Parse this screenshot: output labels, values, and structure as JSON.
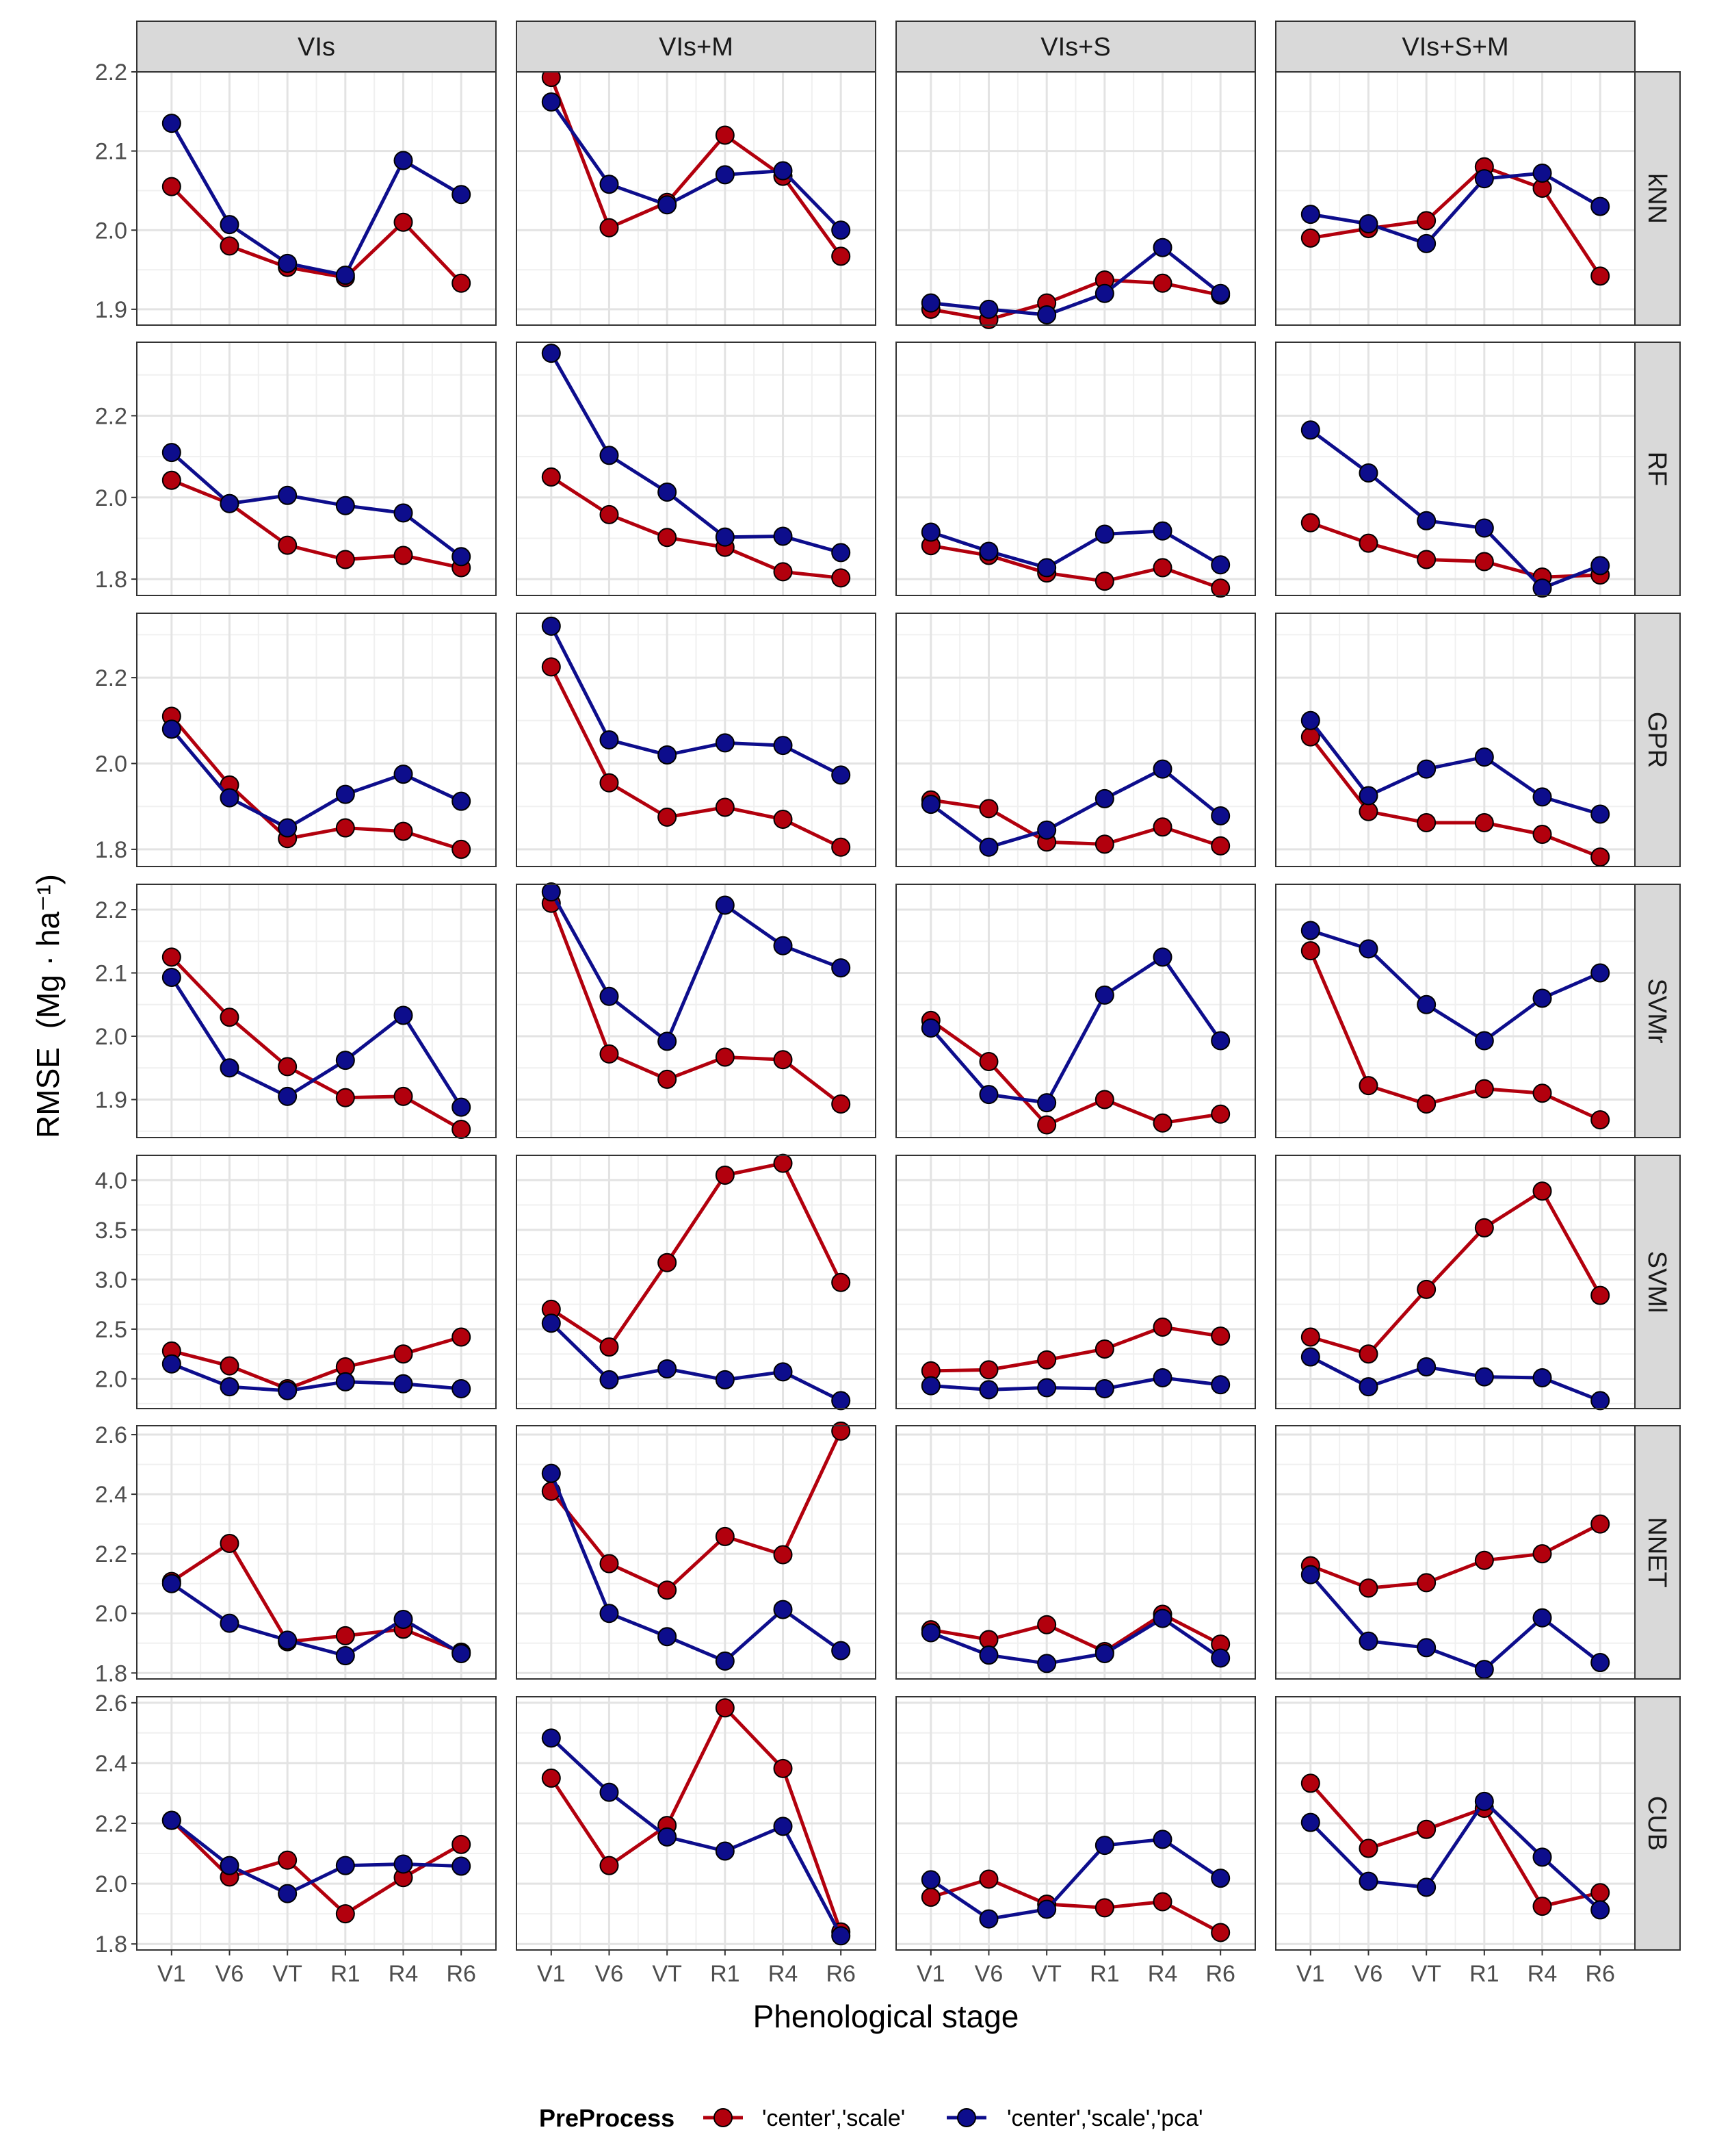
{
  "chart_data": {
    "type": "line",
    "xlabel": "Phenological stage",
    "ylabel": "RMSE",
    "ylabel_unit": "Mg · ha⁻¹",
    "x": [
      "V1",
      "V6",
      "VT",
      "R1",
      "R4",
      "R6"
    ],
    "col_facets": [
      "VIs",
      "VIs+M",
      "VIs+S",
      "VIs+S+M"
    ],
    "row_facets": [
      "kNN",
      "RF",
      "GPR",
      "SVMr",
      "SVMl",
      "NNET",
      "CUB"
    ],
    "scale_y": "free_y per row",
    "legend": {
      "title": "PreProcess",
      "position": "bottom",
      "entries": [
        {
          "name": "'center','scale'",
          "color": "#b2000d"
        },
        {
          "name": "'center','scale','pca'",
          "color": "#0d0d8c"
        }
      ]
    },
    "rows": [
      {
        "name": "kNN",
        "ylim": [
          1.88,
          2.2
        ],
        "ticks": [
          1.9,
          2.0,
          2.1,
          2.2
        ],
        "tick_labels": [
          "1.9",
          "2.0",
          "2.1",
          "2.2"
        ],
        "panels": [
          {
            "cs": [
              2.055,
              1.98,
              1.953,
              1.94,
              2.01,
              1.933
            ],
            "pca": [
              2.135,
              2.007,
              1.958,
              1.943,
              2.088,
              2.045
            ]
          },
          {
            "cs": [
              2.193,
              2.003,
              2.035,
              2.12,
              2.068,
              1.967
            ],
            "pca": [
              2.162,
              2.058,
              2.032,
              2.07,
              2.075,
              2.0
            ]
          },
          {
            "cs": [
              1.9,
              1.887,
              1.908,
              1.937,
              1.933,
              1.918
            ],
            "pca": [
              1.908,
              1.9,
              1.893,
              1.92,
              1.978,
              1.92
            ]
          },
          {
            "cs": [
              1.99,
              2.002,
              2.012,
              2.08,
              2.053,
              1.942
            ],
            "pca": [
              2.02,
              2.008,
              1.983,
              2.065,
              2.072,
              2.03
            ]
          }
        ]
      },
      {
        "name": "RF",
        "ylim": [
          1.76,
          2.38
        ],
        "ticks": [
          1.8,
          2.0,
          2.2
        ],
        "tick_labels": [
          "1.8",
          "2.0",
          "2.2"
        ],
        "panels": [
          {
            "cs": [
              2.042,
              1.985,
              1.883,
              1.848,
              1.858,
              1.828
            ],
            "pca": [
              2.11,
              1.985,
              2.005,
              1.98,
              1.962,
              1.855
            ]
          },
          {
            "cs": [
              2.05,
              1.958,
              1.902,
              1.878,
              1.818,
              1.803
            ],
            "pca": [
              2.353,
              2.103,
              2.013,
              1.903,
              1.905,
              1.865
            ]
          },
          {
            "cs": [
              1.882,
              1.858,
              1.815,
              1.795,
              1.828,
              1.778
            ],
            "pca": [
              1.915,
              1.868,
              1.828,
              1.91,
              1.918,
              1.835
            ]
          },
          {
            "cs": [
              1.938,
              1.888,
              1.848,
              1.843,
              1.805,
              1.81
            ],
            "pca": [
              2.165,
              2.06,
              1.943,
              1.925,
              1.778,
              1.833
            ]
          }
        ]
      },
      {
        "name": "GPR",
        "ylim": [
          1.76,
          2.35
        ],
        "ticks": [
          1.8,
          2.0,
          2.2
        ],
        "tick_labels": [
          "1.8",
          "2.0",
          "2.2"
        ],
        "panels": [
          {
            "cs": [
              2.11,
              1.95,
              1.825,
              1.85,
              1.842,
              1.8
            ],
            "pca": [
              2.08,
              1.92,
              1.85,
              1.928,
              1.975,
              1.912
            ]
          },
          {
            "cs": [
              2.225,
              1.955,
              1.875,
              1.898,
              1.87,
              1.805
            ],
            "pca": [
              2.32,
              2.055,
              2.02,
              2.048,
              2.042,
              1.973
            ]
          },
          {
            "cs": [
              1.915,
              1.895,
              1.817,
              1.812,
              1.852,
              1.808
            ],
            "pca": [
              1.905,
              1.805,
              1.845,
              1.918,
              1.987,
              1.878
            ]
          },
          {
            "cs": [
              2.062,
              1.888,
              1.862,
              1.862,
              1.835,
              1.782
            ],
            "pca": [
              2.1,
              1.925,
              1.987,
              2.015,
              1.922,
              1.882
            ]
          }
        ]
      },
      {
        "name": "SVMr",
        "ylim": [
          1.84,
          2.24
        ],
        "ticks": [
          1.9,
          2.0,
          2.1,
          2.2
        ],
        "tick_labels": [
          "1.9",
          "2.0",
          "2.1",
          "2.2"
        ],
        "panels": [
          {
            "cs": [
              2.125,
              2.03,
              1.952,
              1.903,
              1.905,
              1.853
            ],
            "pca": [
              2.093,
              1.95,
              1.905,
              1.962,
              2.033,
              1.888
            ]
          },
          {
            "cs": [
              2.21,
              1.972,
              1.932,
              1.967,
              1.963,
              1.893
            ],
            "pca": [
              2.228,
              2.063,
              1.992,
              2.207,
              2.143,
              2.108
            ]
          },
          {
            "cs": [
              2.025,
              1.96,
              1.86,
              1.9,
              1.863,
              1.877
            ],
            "pca": [
              2.013,
              1.908,
              1.895,
              2.065,
              2.125,
              1.993
            ]
          },
          {
            "cs": [
              2.135,
              1.922,
              1.893,
              1.917,
              1.91,
              1.868
            ],
            "pca": [
              2.167,
              2.138,
              2.05,
              1.993,
              2.06,
              2.1
            ]
          }
        ]
      },
      {
        "name": "SVMl",
        "ylim": [
          1.7,
          4.25
        ],
        "ticks": [
          2.0,
          2.5,
          3.0,
          3.5,
          4.0
        ],
        "tick_labels": [
          "2.0",
          "2.5",
          "3.0",
          "3.5",
          "4.0"
        ],
        "panels": [
          {
            "cs": [
              2.28,
              2.13,
              1.9,
              2.12,
              2.25,
              2.42
            ],
            "pca": [
              2.15,
              1.92,
              1.88,
              1.97,
              1.95,
              1.9
            ]
          },
          {
            "cs": [
              2.7,
              2.32,
              3.17,
              4.05,
              4.17,
              2.97
            ],
            "pca": [
              2.56,
              1.99,
              2.1,
              1.99,
              2.07,
              1.78
            ]
          },
          {
            "cs": [
              2.08,
              2.09,
              2.19,
              2.3,
              2.52,
              2.43
            ],
            "pca": [
              1.93,
              1.89,
              1.91,
              1.9,
              2.01,
              1.94
            ]
          },
          {
            "cs": [
              2.42,
              2.25,
              2.9,
              3.52,
              3.89,
              2.84
            ],
            "pca": [
              2.22,
              1.92,
              2.12,
              2.02,
              2.01,
              1.78
            ]
          }
        ]
      },
      {
        "name": "NNET",
        "ylim": [
          1.78,
          2.63
        ],
        "ticks": [
          1.8,
          2.0,
          2.2,
          2.4,
          2.6
        ],
        "tick_labels": [
          "1.8",
          "2.0",
          "2.2",
          "2.4",
          "2.6"
        ],
        "panels": [
          {
            "cs": [
              2.107,
              2.235,
              1.905,
              1.925,
              1.947,
              1.87
            ],
            "pca": [
              2.1,
              1.967,
              1.91,
              1.858,
              1.98,
              1.865
            ]
          },
          {
            "cs": [
              2.41,
              2.167,
              2.078,
              2.258,
              2.197,
              2.612
            ],
            "pca": [
              2.47,
              2.0,
              1.922,
              1.84,
              2.013,
              1.875
            ]
          },
          {
            "cs": [
              1.945,
              1.912,
              1.962,
              1.872,
              1.997,
              1.897
            ],
            "pca": [
              1.935,
              1.86,
              1.832,
              1.865,
              1.983,
              1.85
            ]
          },
          {
            "cs": [
              2.16,
              2.085,
              2.103,
              2.178,
              2.2,
              2.3
            ],
            "pca": [
              2.13,
              1.907,
              1.885,
              1.812,
              1.985,
              1.835
            ]
          }
        ]
      },
      {
        "name": "CUB",
        "ylim": [
          1.78,
          2.62
        ],
        "ticks": [
          1.8,
          2.0,
          2.2,
          2.4,
          2.6
        ],
        "tick_labels": [
          "1.8",
          "2.0",
          "2.2",
          "2.4",
          "2.6"
        ],
        "panels": [
          {
            "cs": [
              2.21,
              2.022,
              2.078,
              1.9,
              2.02,
              2.13
            ],
            "pca": [
              2.21,
              2.06,
              1.967,
              2.06,
              2.065,
              2.058
            ]
          },
          {
            "cs": [
              2.35,
              2.06,
              2.193,
              2.583,
              2.382,
              1.84
            ],
            "pca": [
              2.483,
              2.303,
              2.155,
              2.108,
              2.19,
              1.827
            ]
          },
          {
            "cs": [
              1.955,
              2.015,
              1.932,
              1.92,
              1.94,
              1.838
            ],
            "pca": [
              2.013,
              1.883,
              1.915,
              2.127,
              2.147,
              2.018
            ]
          },
          {
            "cs": [
              2.333,
              2.117,
              2.18,
              2.25,
              1.925,
              1.97
            ],
            "pca": [
              2.203,
              2.008,
              1.988,
              2.273,
              2.088,
              1.913
            ]
          }
        ]
      }
    ]
  }
}
